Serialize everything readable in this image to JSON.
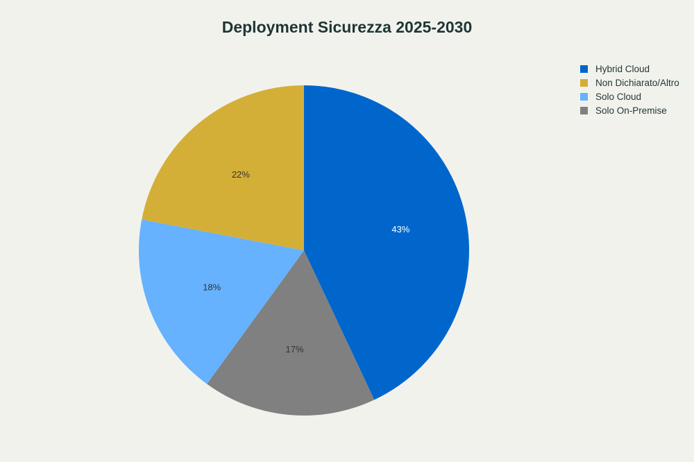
{
  "chart_data": {
    "type": "pie",
    "title": "Deployment Sicurezza 2025-2030",
    "slices": [
      {
        "label": "Hybrid Cloud",
        "value": 43,
        "text": "43%",
        "color": "#0066cc",
        "text_color": "#ffffff"
      },
      {
        "label": "Non Dichiarato/Altro",
        "value": 22,
        "text": "22%",
        "color": "#d4af37",
        "text_color": "#333333"
      },
      {
        "label": "Solo Cloud",
        "value": 18,
        "text": "18%",
        "color": "#66b2ff",
        "text_color": "#333333"
      },
      {
        "label": "Solo On-Premise",
        "value": 17,
        "text": "17%",
        "color": "#808080",
        "text_color": "#333333"
      }
    ],
    "legend": "top-right"
  }
}
